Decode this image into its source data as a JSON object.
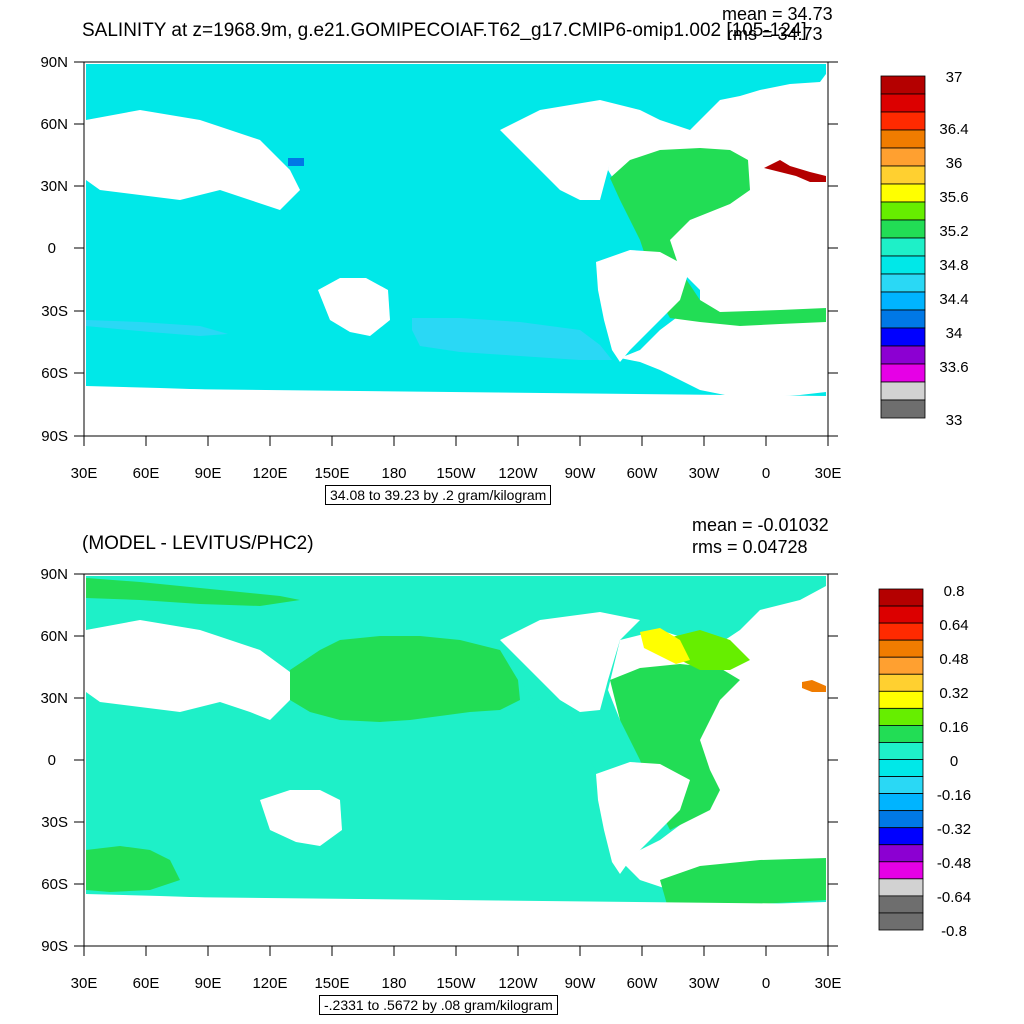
{
  "top": {
    "title": "SALINITY at z=1968.9m, g.e21.GOMIPECOIAF.T62_g17.CMIP6-omip1.002 [105-124]",
    "mean": "mean = 34.73",
    "rms": "rms = 34.73",
    "range": "34.08 to 39.23 by .2 gram/kilogram",
    "colorbar": {
      "labels": [
        "37",
        "36.4",
        "36",
        "35.6",
        "35.2",
        "34.8",
        "34.4",
        "34",
        "33.6",
        "33"
      ],
      "colors": [
        "#b40000",
        "#dc0000",
        "#ff2a00",
        "#f07c00",
        "#ffa030",
        "#ffd030",
        "#ffff00",
        "#66ee00",
        "#22dd55",
        "#1ef0c8",
        "#00e8e8",
        "#2ad8f5",
        "#00b4ff",
        "#0078e6",
        "#0000ff",
        "#8c00d2",
        "#e600e6",
        "#d2d2d2",
        "#6e6e6e"
      ]
    }
  },
  "bottom": {
    "title": "(MODEL - LEVITUS/PHC2)",
    "mean": "mean = -0.01032",
    "rms": "rms = 0.04728",
    "range": "-.2331 to .5672 by .08 gram/kilogram",
    "colorbar": {
      "labels": [
        "0.8",
        "0.64",
        "0.48",
        "0.32",
        "0.16",
        "0",
        "-0.16",
        "-0.32",
        "-0.48",
        "-0.64",
        "-0.8"
      ],
      "colors": [
        "#b40000",
        "#dc0000",
        "#ff2a00",
        "#f07c00",
        "#ffa030",
        "#ffd030",
        "#ffff00",
        "#66ee00",
        "#22dd55",
        "#1ef0c8",
        "#00e8e8",
        "#2ad8f5",
        "#00b4ff",
        "#0078e6",
        "#0000ff",
        "#8c00d2",
        "#e600e6",
        "#d2d2d2",
        "#6e6e6e",
        "#6e6e6e"
      ]
    }
  },
  "axes": {
    "lat_labels": [
      "90N",
      "60N",
      "30N",
      "0",
      "30S",
      "60S",
      "90S"
    ],
    "lon_labels": [
      "30E",
      "60E",
      "90E",
      "120E",
      "150E",
      "180",
      "150W",
      "120W",
      "90W",
      "60W",
      "30W",
      "0",
      "30E"
    ]
  }
}
